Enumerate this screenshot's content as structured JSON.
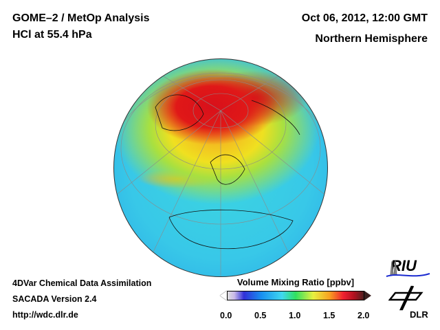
{
  "header": {
    "title": "GOME–2 / MetOp Analysis",
    "subtitle": "HCl at 55.4 hPa",
    "datetime": "Oct 06, 2012, 12:00 GMT",
    "region": "Northern Hemisphere"
  },
  "footer": {
    "line1": "4DVar Chemical Data Assimilation",
    "line2": "SACADA Version 2.4",
    "url": "http://wdc.dlr.de"
  },
  "colorbar": {
    "title": "Volume Mixing Ratio [ppbv]",
    "ticks": [
      "0.0",
      "0.5",
      "1.0",
      "1.5",
      "2.0"
    ],
    "range": [
      0,
      2.0
    ]
  },
  "logos": {
    "riu": "RIU",
    "dlr": "DLR"
  }
}
